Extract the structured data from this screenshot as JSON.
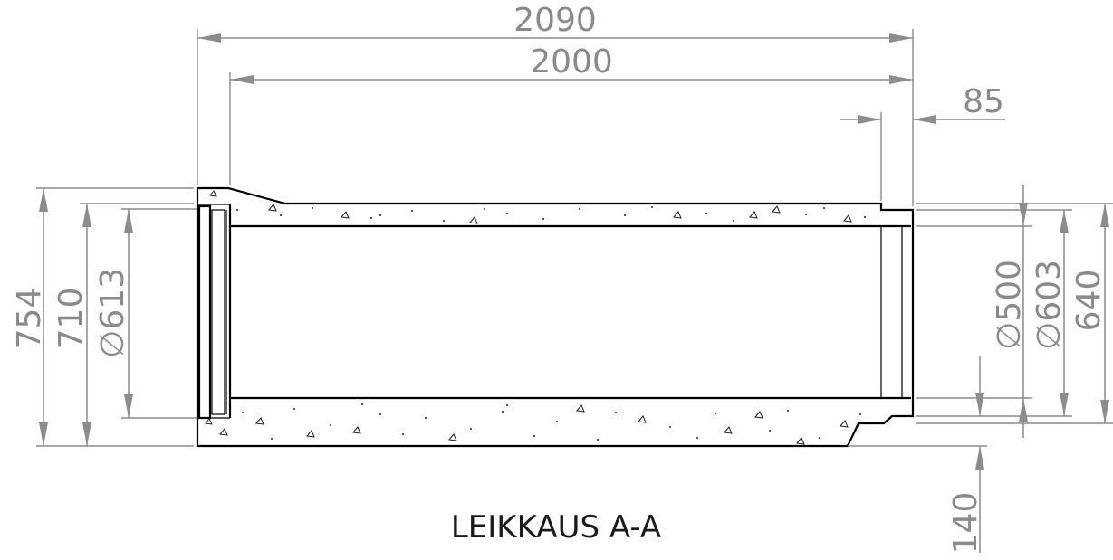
{
  "dimensions": {
    "overall_length": "2090",
    "effective_length": "2000",
    "socket_depth": "85",
    "outer_height_754": "754",
    "outer_height_710": "710",
    "socket_diameter": "∅613",
    "inner_diameter": "∅500",
    "spigot_diameter": "∅603",
    "spigot_height": "640",
    "spigot_offset": "140"
  },
  "caption": "LEIKKAUS A-A",
  "colors": {
    "dimension": "#8c8c8c",
    "outline": "#000000",
    "caption": "#1a1a1a"
  }
}
